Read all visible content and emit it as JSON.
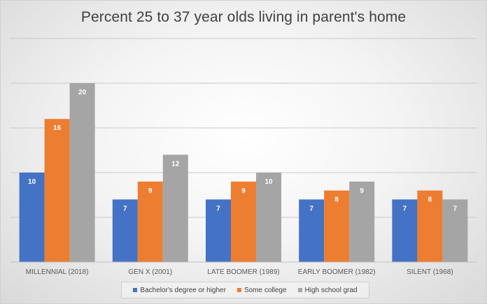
{
  "chart_data": {
    "type": "bar",
    "title": "Percent 25 to 37 year olds living in parent's home",
    "categories": [
      "MILLENNIAL (2018)",
      "GEN X (2001)",
      "LATE BOOMER (1989)",
      "EARLY BOOMER (1982)",
      "SILENT (1968)"
    ],
    "series": [
      {
        "name": "Bachelor's degree or higher",
        "color": "#4472c4",
        "values": [
          10,
          7,
          7,
          7,
          7
        ]
      },
      {
        "name": "Some college",
        "color": "#ed7d31",
        "values": [
          16,
          9,
          9,
          8,
          8
        ]
      },
      {
        "name": "High school grad",
        "color": "#a5a5a5",
        "values": [
          20,
          12,
          10,
          9,
          7
        ]
      }
    ],
    "ylim": [
      0,
      25
    ],
    "grid": true,
    "legend_position": "bottom"
  }
}
